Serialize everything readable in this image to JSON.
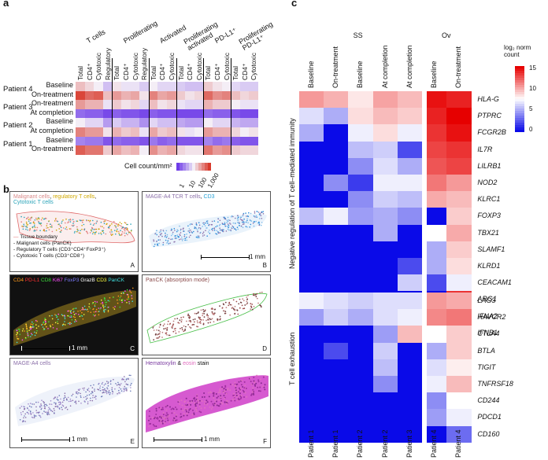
{
  "panel_a": {
    "letter": "a",
    "groups": [
      "T cells",
      "Proliferating",
      "Activated",
      "Proliferating activated",
      "PD-L1⁺",
      "Proliferating PD-L1⁺"
    ],
    "columns": [
      "Total",
      "CD4⁺",
      "Cytotoxic",
      "Regulatory",
      "Total",
      "CD4⁺",
      "Cytotoxic",
      "Regulatory",
      "Total",
      "CD4⁺",
      "Cytotoxic",
      "Total",
      "CD4⁺",
      "Cytotoxic",
      "Total",
      "CD4⁺",
      "Cytotoxic",
      "Total",
      "CD4⁺",
      "Cytotoxic"
    ],
    "patients": [
      "Patient 4",
      "Patient 3",
      "Patient 2",
      "Patient 1"
    ],
    "rows": [
      "Baseline",
      "On-treatment",
      "On-treatment",
      "At completion",
      "Baseline",
      "At completion",
      "Baseline",
      "On-treatment"
    ],
    "legend_label": "Cell count/mm²",
    "legend_ticks": [
      "1",
      "10",
      "100",
      "1,000"
    ],
    "colors": {
      "low": "#6f3de8",
      "mid": "#f4eef6",
      "high": "#d83a2c"
    },
    "values": [
      [
        1.9,
        1.7,
        1.5,
        1.1,
        1.6,
        1.4,
        1.4,
        1.2,
        1.5,
        1.3,
        1.3,
        1.2,
        1.1,
        1.1,
        1.8,
        1.6,
        1.5,
        1.3,
        1.2,
        1.2
      ],
      [
        2.9,
        2.6,
        2.7,
        1.9,
        2.2,
        2.0,
        2.1,
        1.6,
        2.4,
        2.1,
        2.2,
        1.8,
        1.6,
        1.7,
        2.6,
        2.3,
        2.4,
        1.9,
        1.7,
        1.8
      ],
      [
        2.2,
        2.0,
        2.0,
        1.4,
        1.8,
        1.6,
        1.7,
        1.3,
        1.9,
        1.6,
        1.7,
        1.4,
        1.3,
        1.3,
        2.0,
        1.8,
        1.8,
        1.5,
        1.4,
        1.4
      ],
      [
        0.4,
        0.3,
        0.3,
        0.1,
        0.3,
        0.2,
        0.2,
        0.1,
        0.3,
        0.2,
        0.2,
        0.1,
        0.1,
        0.1,
        0.4,
        0.3,
        0.3,
        0.2,
        0.1,
        0.1
      ],
      [
        1.5,
        1.3,
        1.3,
        0.8,
        1.2,
        1.0,
        1.0,
        0.7,
        1.3,
        1.1,
        1.1,
        0.9,
        0.8,
        0.8,
        1.5,
        1.3,
        1.3,
        1.0,
        0.9,
        0.9
      ],
      [
        2.4,
        2.2,
        2.2,
        1.6,
        2.0,
        1.8,
        1.9,
        1.4,
        2.1,
        1.8,
        1.9,
        1.6,
        1.4,
        1.5,
        2.2,
        2.0,
        2.0,
        1.7,
        1.5,
        1.6
      ],
      [
        0.6,
        0.5,
        0.5,
        0.2,
        0.4,
        0.3,
        0.3,
        0.2,
        0.5,
        0.3,
        0.4,
        0.2,
        0.2,
        0.2,
        0.6,
        0.4,
        0.5,
        0.3,
        0.2,
        0.2
      ],
      [
        2.7,
        2.5,
        2.5,
        1.8,
        2.1,
        1.9,
        2.0,
        1.5,
        2.3,
        2.0,
        2.1,
        1.7,
        1.6,
        1.6,
        2.5,
        2.2,
        2.3,
        1.8,
        1.7,
        1.7
      ]
    ]
  },
  "panel_b": {
    "letter": "b",
    "tiles": [
      {
        "title_parts": [
          "Malignant cells",
          ", ",
          "regulatory T cells",
          ","
        ],
        "title_line2": "Cytotoxic T cells",
        "letter": "A",
        "legend": [
          "Tissue boundary",
          "- Malignant cells (PanCK)",
          "- Regulatory T cells (CD3⁺CD4⁺FoxP3⁺)",
          "- Cytotoxic T cells (CD3⁺CD8⁺)"
        ]
      },
      {
        "title_parts": [
          "MAGE-A4 TCR T cells",
          ", ",
          "CD3"
        ],
        "letter": "B",
        "scale": "1 mm"
      },
      {
        "title_parts": [
          "CD4 ",
          "PD-L1 ",
          "CD8 ",
          "Ki67 ",
          "FoxP3 ",
          "GrazB ",
          "CD3 ",
          "PanCK"
        ],
        "letter": "C",
        "scale": "1 mm"
      },
      {
        "title_parts": [
          "PanCK (absorption mode)"
        ],
        "letter": "D"
      },
      {
        "title_parts": [
          "MAGE-A4 cells"
        ],
        "letter": "E",
        "scale": "1 mm"
      },
      {
        "title_parts": [
          "Hematoxylin",
          " & ",
          "eosin",
          " stain"
        ],
        "letter": "F",
        "scale": "1 mm"
      }
    ]
  },
  "panel_c": {
    "letter": "c",
    "group_labels": [
      "SS",
      "Ov"
    ],
    "columns": [
      "Baseline",
      "On-treatment",
      "Baseline",
      "At completion",
      "At completion",
      "Baseline",
      "On-treatment"
    ],
    "patients": [
      "Patient 1",
      "Patient 1",
      "Patient 2",
      "Patient 2",
      "Patient 3",
      "Patient 4",
      "Patient 4"
    ],
    "section1_label": "Negative regulation of T cell–mediated immunity",
    "section2_label": "T cell exhaustion",
    "genes1": [
      "HLA-G",
      "PTPRC",
      "FCGR2B",
      "IL7R",
      "LILRB1",
      "NOD2",
      "KLRC1",
      "FOXP3",
      "TBX21",
      "SLAMF1",
      "KLRD1",
      "CEACAM1",
      "ARG1",
      "IFNA2",
      "IFNB1"
    ],
    "genes2": [
      "LAG3",
      "HAVCR2",
      "CTLA4",
      "BTLA",
      "TIGIT",
      "TNFRSF18",
      "CD244",
      "PDCD1",
      "CD160"
    ],
    "legend_title": "log₂ norm count",
    "legend_ticks": [
      "15",
      "10",
      "5",
      "0"
    ],
    "vmax": 15,
    "colors": {
      "low": "#0a0ae8",
      "mid": "#ffffff",
      "high": "#e60000"
    },
    "values1": [
      [
        10.5,
        9.8,
        8.2,
        10.2,
        9.5,
        14.5,
        14.0
      ],
      [
        6.5,
        5.0,
        8.5,
        9.5,
        9.0,
        14.0,
        15.0
      ],
      [
        5.0,
        0.0,
        7.0,
        8.5,
        7.0,
        13.5,
        14.5
      ],
      [
        0.0,
        0.0,
        5.5,
        6.0,
        2.0,
        13.0,
        13.5
      ],
      [
        0.0,
        0.0,
        4.0,
        6.5,
        5.0,
        12.5,
        13.0
      ],
      [
        0.0,
        4.0,
        1.5,
        7.0,
        7.0,
        11.5,
        10.5
      ],
      [
        0.0,
        0.0,
        4.0,
        6.0,
        5.5,
        10.0,
        9.5
      ],
      [
        5.5,
        7.0,
        4.5,
        5.0,
        4.0,
        0.0,
        9.0
      ],
      [
        0.0,
        0.0,
        0.0,
        5.0,
        0.0,
        7.5,
        10.0
      ],
      [
        0.0,
        0.0,
        0.0,
        0.0,
        0.0,
        5.0,
        9.0
      ],
      [
        0.0,
        0.0,
        0.0,
        0.0,
        2.0,
        5.0,
        8.5
      ],
      [
        0.0,
        0.0,
        0.0,
        0.0,
        6.0,
        2.0,
        7.0
      ],
      [
        0.0,
        0.0,
        0.0,
        0.0,
        0.0,
        0.0,
        13.5
      ],
      [
        0.0,
        0.0,
        0.0,
        0.0,
        0.0,
        0.0,
        0.0
      ],
      [
        0.0,
        0.0,
        0.0,
        0.0,
        0.0,
        0.0,
        0.0
      ]
    ],
    "values2": [
      [
        7.0,
        6.5,
        6.0,
        6.5,
        6.5,
        10.5,
        10.0
      ],
      [
        4.5,
        6.0,
        5.0,
        6.5,
        7.0,
        11.0,
        11.5
      ],
      [
        0.0,
        0.0,
        0.0,
        4.5,
        9.5,
        7.5,
        9.0
      ],
      [
        0.0,
        2.0,
        0.0,
        6.0,
        0.0,
        5.0,
        9.0
      ],
      [
        0.0,
        0.0,
        0.0,
        5.5,
        0.0,
        6.5,
        8.0
      ],
      [
        0.0,
        0.0,
        0.0,
        4.0,
        0.0,
        7.0,
        9.5
      ],
      [
        0.0,
        0.0,
        0.0,
        0.0,
        0.0,
        4.0,
        7.5
      ],
      [
        0.0,
        0.0,
        0.0,
        0.0,
        0.0,
        4.5,
        7.0
      ],
      [
        0.0,
        0.0,
        0.0,
        0.0,
        0.0,
        0.0,
        3.0
      ]
    ]
  }
}
